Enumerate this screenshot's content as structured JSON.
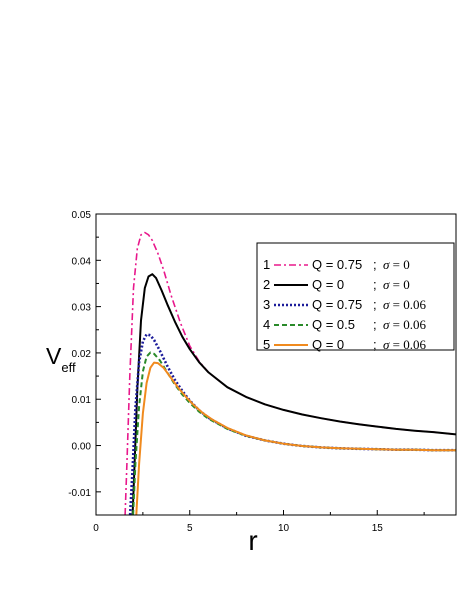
{
  "chart_data": {
    "type": "line",
    "title": "",
    "xlabel": "r",
    "ylabel": "V",
    "ylabel_sub": "eff",
    "xlim": [
      0,
      19.2
    ],
    "ylim": [
      -0.015,
      0.05
    ],
    "x_ticks": [
      0,
      5,
      10,
      15
    ],
    "x_tick_labels": [
      "0",
      "5",
      "10",
      "15"
    ],
    "y_ticks": [
      -0.01,
      0.0,
      0.01,
      0.02,
      0.03,
      0.04,
      0.05
    ],
    "y_tick_labels": [
      "-0.01",
      "0.00",
      "0.01",
      "0.02",
      "0.03",
      "0.04",
      "0.05"
    ],
    "grid": false,
    "legend_position": "top-right",
    "series": [
      {
        "index": "1",
        "q_text": "Q = 0.75",
        "sigma_text": "σ = 0",
        "color": "#e8188c",
        "dash": "7,3,2,3",
        "width": 1.6,
        "x": [
          1.55,
          1.65,
          1.8,
          2.0,
          2.2,
          2.4,
          2.6,
          2.8,
          3.0,
          3.3,
          3.6,
          4.0,
          4.5,
          5.0,
          5.5,
          6.0,
          7.0,
          8.0,
          9.0,
          10.0,
          11.0,
          12.0,
          13.0,
          14.0,
          15.0,
          16.0,
          17.0,
          18.0,
          19.2
        ],
        "y": [
          -0.015,
          -0.004,
          0.015,
          0.034,
          0.0425,
          0.0455,
          0.046,
          0.0455,
          0.0443,
          0.0415,
          0.038,
          0.0325,
          0.0265,
          0.0215,
          0.0182,
          0.0158,
          0.0126,
          0.0105,
          0.0089,
          0.0077,
          0.0067,
          0.0059,
          0.0052,
          0.0046,
          0.0041,
          0.0036,
          0.0032,
          0.0029,
          0.0024
        ]
      },
      {
        "index": "2",
        "q_text": "Q = 0",
        "sigma_text": "σ = 0",
        "color": "#000000",
        "dash": "",
        "width": 2.0,
        "x": [
          1.95,
          2.05,
          2.2,
          2.4,
          2.6,
          2.8,
          3.0,
          3.2,
          3.5,
          3.8,
          4.2,
          4.6,
          5.0,
          5.5,
          6.0,
          7.0,
          8.0,
          9.0,
          10.0,
          11.0,
          12.0,
          13.0,
          14.0,
          15.0,
          16.0,
          17.0,
          18.0,
          19.2
        ],
        "y": [
          -0.015,
          -0.005,
          0.012,
          0.027,
          0.034,
          0.0365,
          0.037,
          0.0362,
          0.0335,
          0.0305,
          0.0268,
          0.0235,
          0.0208,
          0.018,
          0.0158,
          0.0126,
          0.0105,
          0.0089,
          0.0077,
          0.0067,
          0.0059,
          0.0052,
          0.0046,
          0.0041,
          0.0036,
          0.0032,
          0.0029,
          0.0024
        ]
      },
      {
        "index": "3",
        "q_text": "Q = 0.75",
        "sigma_text": "σ = 0.06",
        "color": "#1c1c9a",
        "dash": "2,2",
        "width": 2.6,
        "x": [
          1.82,
          1.95,
          2.1,
          2.3,
          2.5,
          2.7,
          2.9,
          3.1,
          3.4,
          3.8,
          4.2,
          4.6,
          5.0,
          5.5,
          6.0,
          7.0,
          8.0,
          9.0,
          10.0,
          11.0,
          12.0,
          13.0,
          14.0,
          15.0,
          16.0,
          17.0,
          18.0,
          19.2
        ],
        "y": [
          -0.015,
          -0.005,
          0.008,
          0.018,
          0.0225,
          0.024,
          0.0238,
          0.0228,
          0.0205,
          0.0172,
          0.0142,
          0.0118,
          0.0097,
          0.0076,
          0.006,
          0.0037,
          0.0021,
          0.0011,
          0.0004,
          -0.0001,
          -0.0004,
          -0.0006,
          -0.0007,
          -0.0008,
          -0.0009,
          -0.0009,
          -0.001,
          -0.001
        ]
      },
      {
        "index": "4",
        "q_text": "Q = 0.5",
        "sigma_text": "σ = 0.06",
        "color": "#2a8a2a",
        "dash": "5,3",
        "width": 2.0,
        "x": [
          1.98,
          2.1,
          2.3,
          2.5,
          2.7,
          2.9,
          3.1,
          3.4,
          3.8,
          4.2,
          4.6,
          5.0,
          5.5,
          6.0,
          7.0,
          8.0,
          9.0,
          10.0,
          11.0,
          12.0,
          13.0,
          14.0,
          15.0,
          16.0,
          17.0,
          18.0,
          19.2
        ],
        "y": [
          -0.015,
          -0.004,
          0.0085,
          0.016,
          0.0192,
          0.0201,
          0.0198,
          0.0184,
          0.0158,
          0.0132,
          0.011,
          0.0092,
          0.0073,
          0.0058,
          0.0036,
          0.0021,
          0.0011,
          0.0004,
          -0.0001,
          -0.0004,
          -0.0006,
          -0.0007,
          -0.0008,
          -0.0009,
          -0.0009,
          -0.001,
          -0.001
        ]
      },
      {
        "index": "5",
        "q_text": "Q = 0",
        "sigma_text": "σ = 0.06",
        "color": "#f08a1e",
        "dash": "",
        "width": 2.0,
        "x": [
          2.15,
          2.3,
          2.5,
          2.7,
          2.9,
          3.1,
          3.3,
          3.6,
          4.0,
          4.4,
          4.8,
          5.2,
          5.7,
          6.2,
          7.0,
          8.0,
          9.0,
          10.0,
          11.0,
          12.0,
          13.0,
          14.0,
          15.0,
          16.0,
          17.0,
          18.0,
          19.2
        ],
        "y": [
          -0.015,
          -0.004,
          0.007,
          0.0135,
          0.0168,
          0.0179,
          0.0178,
          0.0168,
          0.0146,
          0.0124,
          0.0105,
          0.0088,
          0.007,
          0.0056,
          0.0038,
          0.0022,
          0.0011,
          0.0004,
          -0.0001,
          -0.0004,
          -0.0006,
          -0.0007,
          -0.0008,
          -0.0009,
          -0.0009,
          -0.001,
          -0.001
        ]
      }
    ]
  }
}
